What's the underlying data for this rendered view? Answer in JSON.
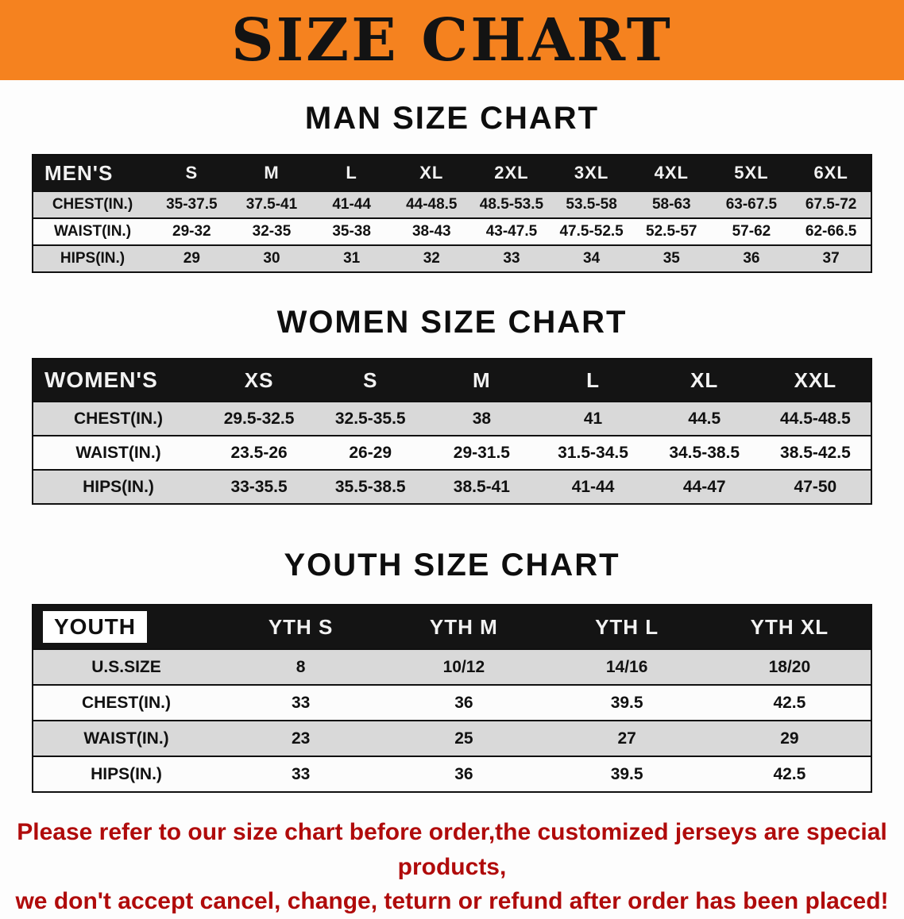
{
  "banner": {
    "title": "SIZE CHART"
  },
  "men": {
    "heading": "MAN SIZE CHART",
    "header": [
      "MEN'S",
      "S",
      "M",
      "L",
      "XL",
      "2XL",
      "3XL",
      "4XL",
      "5XL",
      "6XL"
    ],
    "rows": [
      [
        "CHEST(IN.)",
        "35-37.5",
        "37.5-41",
        "41-44",
        "44-48.5",
        "48.5-53.5",
        "53.5-58",
        "58-63",
        "63-67.5",
        "67.5-72"
      ],
      [
        "WAIST(IN.)",
        "29-32",
        "32-35",
        "35-38",
        "38-43",
        "43-47.5",
        "47.5-52.5",
        "52.5-57",
        "57-62",
        "62-66.5"
      ],
      [
        "HIPS(IN.)",
        "29",
        "30",
        "31",
        "32",
        "33",
        "34",
        "35",
        "36",
        "37"
      ]
    ]
  },
  "women": {
    "heading": "WOMEN SIZE CHART",
    "header": [
      "WOMEN'S",
      "XS",
      "S",
      "M",
      "L",
      "XL",
      "XXL"
    ],
    "rows": [
      [
        "CHEST(IN.)",
        "29.5-32.5",
        "32.5-35.5",
        "38",
        "41",
        "44.5",
        "44.5-48.5"
      ],
      [
        "WAIST(IN.)",
        "23.5-26",
        "26-29",
        "29-31.5",
        "31.5-34.5",
        "34.5-38.5",
        "38.5-42.5"
      ],
      [
        "HIPS(IN.)",
        "33-35.5",
        "35.5-38.5",
        "38.5-41",
        "41-44",
        "44-47",
        "47-50"
      ]
    ]
  },
  "youth": {
    "heading": "YOUTH SIZE CHART",
    "header": [
      "YOUTH",
      "YTH S",
      "YTH M",
      "YTH L",
      "YTH XL"
    ],
    "rows": [
      [
        "U.S.SIZE",
        "8",
        "10/12",
        "14/16",
        "18/20"
      ],
      [
        "CHEST(IN.)",
        "33",
        "36",
        "39.5",
        "42.5"
      ],
      [
        "WAIST(IN.)",
        "23",
        "25",
        "27",
        "29"
      ],
      [
        "HIPS(IN.)",
        "33",
        "36",
        "39.5",
        "42.5"
      ]
    ]
  },
  "disclaimer": {
    "line1": "Please refer to our size chart before order,the customized jerseys are special products,",
    "line2": "we don't accept cancel, change, teturn or refund after order has been placed!"
  },
  "colors": {
    "banner_bg": "#f5821f",
    "header_bg": "#141414",
    "row_gray": "#d9d9d9",
    "disclaimer_red": "#b00b0b"
  }
}
